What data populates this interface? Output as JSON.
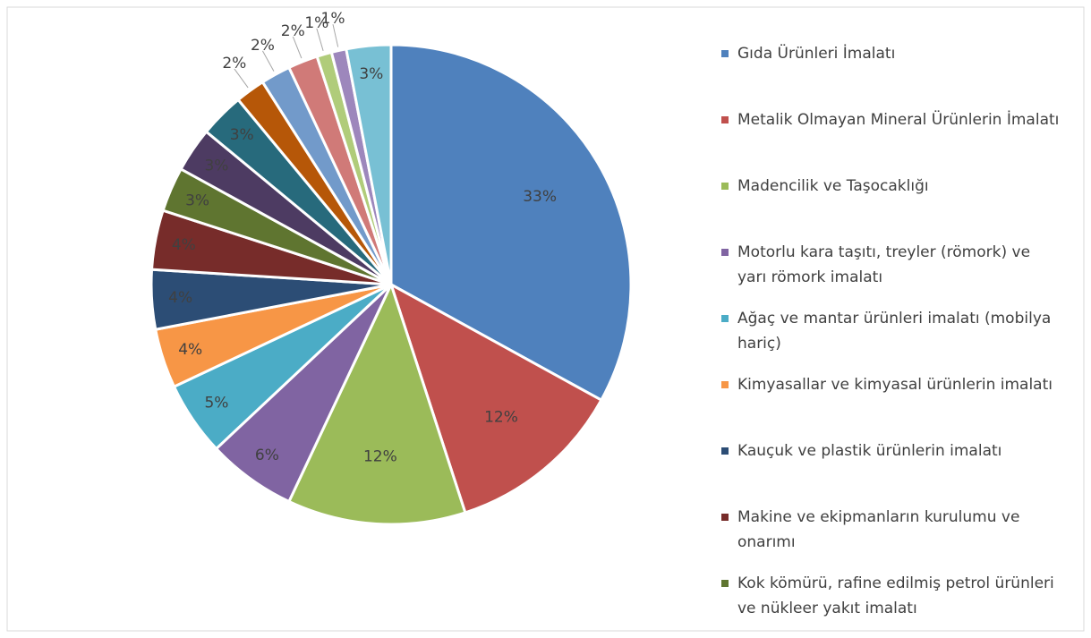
{
  "chart_data": {
    "type": "pie",
    "categories": [
      "Gıda Ürünleri İmalatı",
      "Metalik Olmayan Mineral Ürünlerin İmalatı",
      "Madencilik ve Taşocaklığı",
      "Motorlu kara taşıtı, treyler (römork) ve yarı römork imalatı",
      "Ağaç ve mantar ürünleri imalatı (mobilya hariç)",
      "Kimyasallar ve kimyasal ürünlerin imalatı",
      "Kauçuk ve plastik ürünlerin imalatı",
      "Makine ve ekipmanların kurulumu ve onarımı",
      "Kok kömürü, rafine edilmiş petrol ürünleri ve nükleer yakıt imalatı",
      null,
      null,
      null,
      null,
      null,
      null,
      null,
      null
    ],
    "values": [
      33,
      12,
      12,
      6,
      5,
      4,
      4,
      4,
      3,
      3,
      3,
      2,
      2,
      2,
      1,
      1,
      3
    ],
    "value_labels": [
      "33%",
      "12%",
      "12%",
      "6%",
      "5%",
      "4%",
      "4%",
      "4%",
      "3%",
      "3%",
      "3%",
      "2%",
      "2%",
      "2%",
      "1%",
      "1%",
      "3%"
    ],
    "colors": [
      "#4f81bd",
      "#c0504d",
      "#9bbb59",
      "#8064a2",
      "#4bacc6",
      "#f79646",
      "#2c4d75",
      "#772c2a",
      "#5f7530",
      "#4d3b62",
      "#276a7c",
      "#b65708",
      "#729aca",
      "#d07a78",
      "#b0cc7a",
      "#9d87bc",
      "#78c0d4"
    ],
    "legend": "right"
  }
}
